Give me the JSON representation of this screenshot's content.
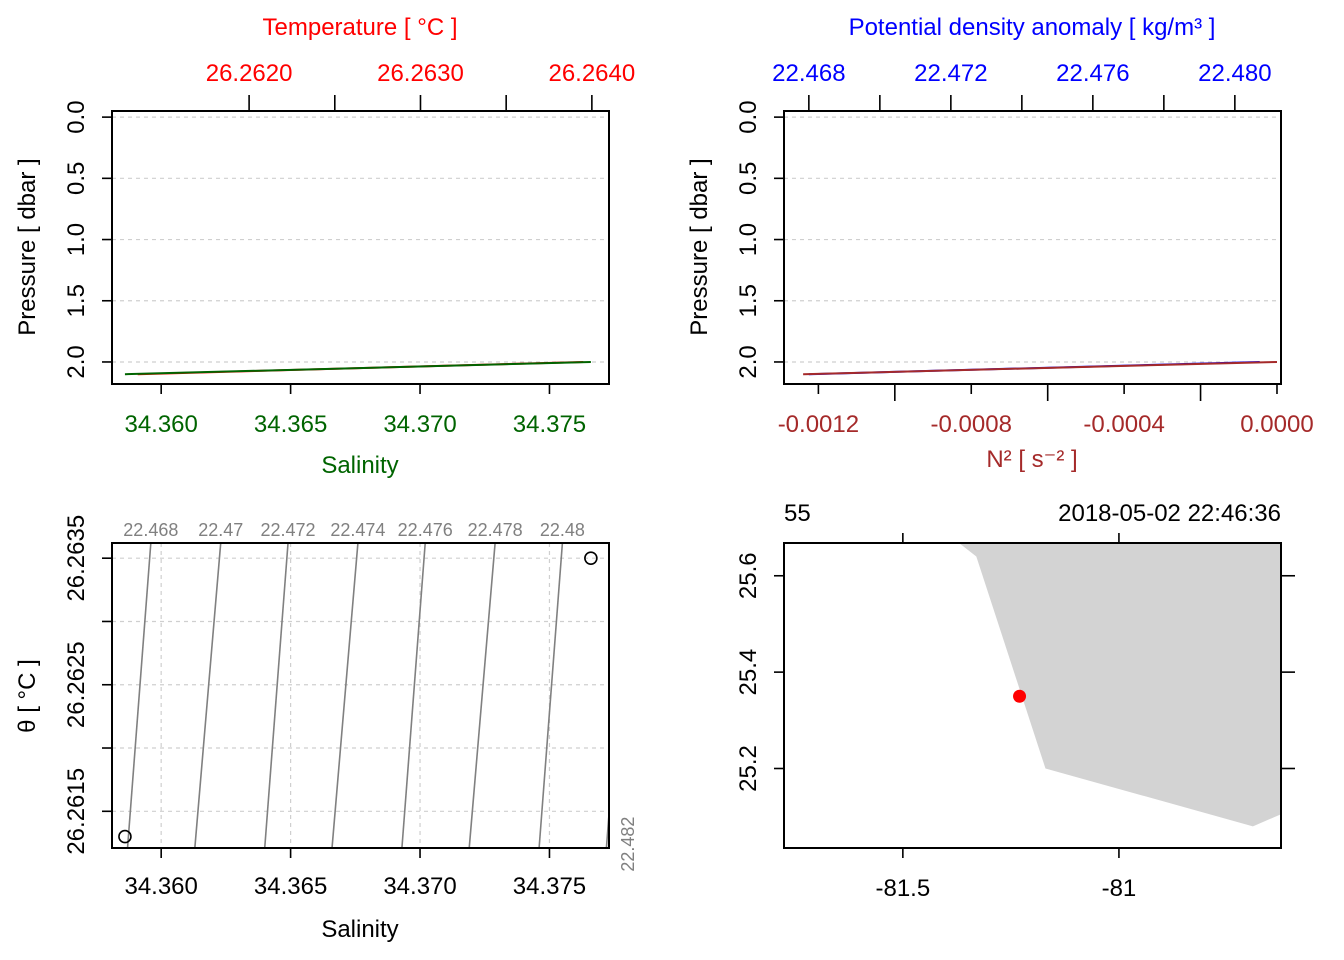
{
  "colors": {
    "temperature": "#ff0000",
    "salinity": "#006400",
    "density": "#0000ff",
    "n2": "#a52a2a",
    "coast": "#d3d3d3",
    "station": "#ff0000",
    "isopycnal": "#808080"
  },
  "chart_data": [
    {
      "id": "salinity-temperature-profile",
      "type": "line",
      "x_label": "Salinity",
      "x_top_label": "Temperature [ °C ]",
      "y_label": "Pressure [ dbar ]",
      "x_ticks": [
        "34.360",
        "34.365",
        "34.370",
        "34.375"
      ],
      "x_tick_values": [
        34.36,
        34.365,
        34.37,
        34.375
      ],
      "x_range": [
        34.3581,
        34.3773
      ],
      "x_top_ticks": [
        "26.2620",
        "26.2630",
        "26.2640"
      ],
      "x_top_tick_values": [
        26.262,
        26.263,
        26.264
      ],
      "x_top_minor_ticks": [
        26.2625,
        26.2635
      ],
      "x_top_range": [
        26.2612,
        26.2641
      ],
      "y_ticks": [
        "0.0",
        "0.5",
        "1.0",
        "1.5",
        "2.0"
      ],
      "y_tick_values": [
        0,
        0.5,
        1.0,
        1.5,
        2.0
      ],
      "y_range": [
        2.18,
        -0.05
      ],
      "series": [
        {
          "name": "",
          "color": "#ff0000",
          "x": [
            26.26135,
            26.26395
          ],
          "y": [
            2.1,
            2.0
          ],
          "axis": "top"
        },
        {
          "name": "",
          "color": "#006400",
          "x": [
            34.3586,
            34.3766
          ],
          "y": [
            2.1,
            2.0
          ],
          "axis": "bottom"
        }
      ]
    },
    {
      "id": "n2-density-profile",
      "type": "line",
      "x_label": "N² [ s⁻² ]",
      "x_top_label": "Potential density anomaly [ kg/m³ ]",
      "y_label": "Pressure [ dbar ]",
      "x_ticks": [
        "-0.0012",
        "-0.0008",
        "-0.0004",
        "0.0000"
      ],
      "x_tick_values": [
        -0.0012,
        -0.0008,
        -0.0004,
        0.0
      ],
      "x_minor_ticks": [
        -0.001,
        -0.0006,
        -0.0002
      ],
      "x_range": [
        -0.00129,
        1.05e-05
      ],
      "x_top_ticks": [
        "22.468",
        "22.472",
        "22.476",
        "22.480"
      ],
      "x_top_tick_values": [
        22.468,
        22.472,
        22.476,
        22.48
      ],
      "x_top_minor_ticks": [
        22.47,
        22.474,
        22.478
      ],
      "x_top_range": [
        22.4673,
        22.4813
      ],
      "y_ticks": [
        "0.0",
        "0.5",
        "1.0",
        "1.5",
        "2.0"
      ],
      "y_tick_values": [
        0,
        0.5,
        1.0,
        1.5,
        2.0
      ],
      "y_range": [
        2.18,
        -0.05
      ],
      "series": [
        {
          "name": "",
          "color": "#0000ff",
          "x": [
            22.468,
            22.4807
          ],
          "y": [
            2.1,
            2.0
          ],
          "axis": "top"
        },
        {
          "name": "",
          "color": "#a52a2a",
          "x": [
            -0.00124,
            0.0
          ],
          "y": [
            2.1,
            2.0
          ],
          "axis": "bottom"
        }
      ]
    },
    {
      "id": "ts-diagram",
      "type": "scatter",
      "x_label": "Salinity",
      "y_label": "θ [ °C ]",
      "x_ticks": [
        "34.360",
        "34.365",
        "34.370",
        "34.375"
      ],
      "x_tick_values": [
        34.36,
        34.365,
        34.37,
        34.375
      ],
      "x_range": [
        34.3581,
        34.3773
      ],
      "y_ticks": [
        "26.2615",
        "26.2625",
        "26.2635"
      ],
      "y_tick_values": [
        26.2615,
        26.2625,
        26.2635
      ],
      "y_grid_values": [
        26.2615,
        26.262,
        26.2625,
        26.263,
        26.2635
      ],
      "y_range": [
        26.26121,
        26.26362
      ],
      "points": [
        {
          "x": 34.3586,
          "y": 26.2613
        },
        {
          "x": 34.3766,
          "y": 26.2635
        }
      ],
      "isopycnals": [
        {
          "label": "22.468",
          "s_bottom": 34.3587,
          "s_top": 34.3596
        },
        {
          "label": "22.47",
          "s_bottom": 34.3613,
          "s_top": 34.3623
        },
        {
          "label": "22.472",
          "s_bottom": 34.364,
          "s_top": 34.3649
        },
        {
          "label": "22.474",
          "s_bottom": 34.3666,
          "s_top": 34.3676
        },
        {
          "label": "22.476",
          "s_bottom": 34.3693,
          "s_top": 34.3702
        },
        {
          "label": "22.478",
          "s_bottom": 34.3719,
          "s_top": 34.3729
        },
        {
          "label": "22.48",
          "s_bottom": 34.3746,
          "s_top": 34.3755
        },
        {
          "label": "22.482",
          "s_bottom": 34.3772,
          "s_top": 34.3781
        }
      ]
    },
    {
      "id": "station-map",
      "type": "map",
      "top_left_label": "55",
      "top_right_label": "2018-05-02 22:46:36",
      "x_ticks": [
        "-81.5",
        "-81"
      ],
      "x_tick_values": [
        -81.5,
        -81.0
      ],
      "x_range": [
        -81.775,
        -80.625
      ],
      "y_ticks": [
        "25.2",
        "25.4",
        "25.6"
      ],
      "y_tick_values": [
        25.2,
        25.4,
        25.6
      ],
      "y_range": [
        25.035,
        25.668
      ],
      "land": [
        [
          -81.37,
          25.668
        ],
        [
          -81.33,
          25.64
        ],
        [
          -81.17,
          25.2
        ],
        [
          -80.69,
          25.08
        ],
        [
          -80.625,
          25.105
        ],
        [
          -80.625,
          25.668
        ]
      ],
      "station": {
        "lon": -81.23,
        "lat": 25.35
      }
    }
  ]
}
